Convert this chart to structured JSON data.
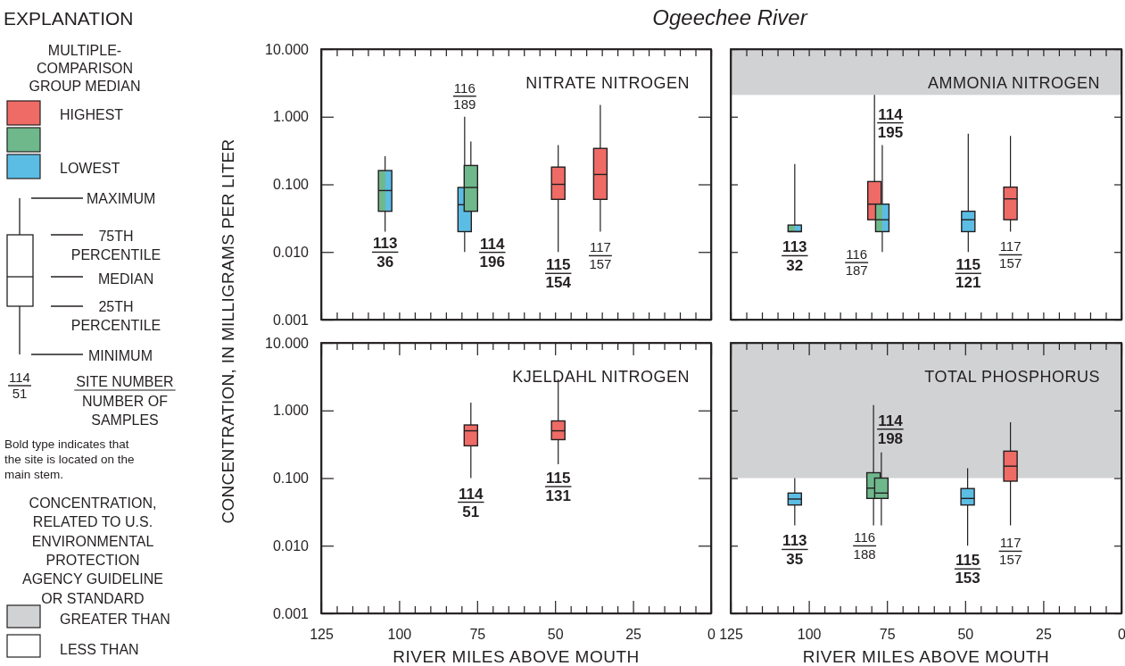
{
  "chart_data": [
    {
      "type": "other",
      "title": "EXPLANATION",
      "colors": [
        "#ef6b66",
        "#6fb88c",
        "#5bbde4",
        "#d1d2d4",
        "#ffffff"
      ],
      "annotations": [
        "MULTIPLE-\nCOMPARISON\nGROUP MEDIAN",
        "HIGHEST",
        "LOWEST",
        "MAXIMUM",
        "75TH\nPERCENTILE",
        "MEDIAN",
        "25TH\nPERCENTILE",
        "MINIMUM",
        "114\n51",
        "SITE NUMBER\nNUMBER OF\nSAMPLES",
        "Bold type indicates that\nthe site is located on the\nmain stem.",
        "CONCENTRATION,\nRELATED TO U.S.\nENVIRONMENTAL\nPROTECTION\nAGENCY GUIDELINE\nOR STANDARD",
        "GREATER THAN",
        "LESS THAN"
      ]
    },
    {
      "type": "box",
      "title": "Ogeechee River",
      "subtitle": "NITRATE NITROGEN",
      "ylabel": "CONCENTRATION, IN MILLIGRAMS PER LITER",
      "log": true,
      "tick_labels": "y",
      "xlim": [
        125,
        0
      ],
      "xticks": [
        {
          "value": 125,
          "label": null
        },
        {
          "value": 120,
          "label": null
        },
        {
          "value": 115,
          "label": null
        },
        {
          "value": 110,
          "label": null
        },
        {
          "value": 105,
          "label": null
        },
        {
          "value": 100,
          "label": null
        },
        {
          "value": 95,
          "label": null
        },
        {
          "value": 90,
          "label": null
        },
        {
          "value": 85,
          "label": null
        },
        {
          "value": 80,
          "label": null
        },
        {
          "value": 75,
          "label": null
        },
        {
          "value": 70,
          "label": null
        },
        {
          "value": 65,
          "label": null
        },
        {
          "value": 60,
          "label": null
        },
        {
          "value": 55,
          "label": null
        },
        {
          "value": 50,
          "label": null
        },
        {
          "value": 45,
          "label": null
        },
        {
          "value": 40,
          "label": null
        },
        {
          "value": 35,
          "label": null
        },
        {
          "value": 30,
          "label": null
        },
        {
          "value": 25,
          "label": null
        },
        {
          "value": 20,
          "label": null
        },
        {
          "value": 15,
          "label": null
        },
        {
          "value": 10,
          "label": null
        },
        {
          "value": 5,
          "label": null
        },
        {
          "value": 0,
          "label": null
        }
      ],
      "ylim": [
        0.001,
        10
      ],
      "yticks": [
        {
          "value": 0.001,
          "label": "0.001"
        },
        {
          "value": 0.01,
          "label": "0.010"
        },
        {
          "value": 0.1,
          "label": "0.100"
        },
        {
          "value": 1,
          "label": "1.000"
        },
        {
          "value": 10,
          "label": "10.000"
        }
      ],
      "series": [
        {
          "x": [
            104.5,
            79,
            77,
            49,
            35.5
          ],
          "colors": [
            [
              "#6fb88c",
              "#5bbde4"
            ],
            "#5bbde4",
            "#6fb88c",
            "#ef6b66",
            "#ef6b66"
          ],
          "boxes": [
            {
              "low": 0.02,
              "q1": 0.04,
              "median": 0.081,
              "q3": 0.16,
              "high": 0.26
            },
            {
              "low": 0.01,
              "q1": 0.02,
              "median": 0.05,
              "q3": 0.09,
              "high": 1.0
            },
            {
              "low": 0.04,
              "q1": 0.04,
              "median": 0.09,
              "q3": 0.19,
              "high": 0.43
            },
            {
              "low": 0.01,
              "q1": 0.06,
              "median": 0.1,
              "q3": 0.18,
              "high": 0.38
            },
            {
              "low": 0.02,
              "q1": 0.06,
              "median": 0.14,
              "q3": 0.34,
              "high": 1.5
            }
          ]
        }
      ],
      "annotations": [
        "113\n36",
        "116\n189",
        "114\n196",
        "115\n154",
        "117\n157"
      ]
    },
    {
      "type": "box",
      "title": "AMMONIA NITROGEN",
      "log": true,
      "tick_labels": false,
      "xlim": [
        125,
        0
      ],
      "xticks": [
        {
          "value": 125,
          "label": null
        },
        {
          "value": 120,
          "label": null
        },
        {
          "value": 115,
          "label": null
        },
        {
          "value": 110,
          "label": null
        },
        {
          "value": 105,
          "label": null
        },
        {
          "value": 100,
          "label": null
        },
        {
          "value": 95,
          "label": null
        },
        {
          "value": 90,
          "label": null
        },
        {
          "value": 85,
          "label": null
        },
        {
          "value": 80,
          "label": null
        },
        {
          "value": 75,
          "label": null
        },
        {
          "value": 70,
          "label": null
        },
        {
          "value": 65,
          "label": null
        },
        {
          "value": 60,
          "label": null
        },
        {
          "value": 55,
          "label": null
        },
        {
          "value": 50,
          "label": null
        },
        {
          "value": 45,
          "label": null
        },
        {
          "value": 40,
          "label": null
        },
        {
          "value": 35,
          "label": null
        },
        {
          "value": 30,
          "label": null
        },
        {
          "value": 25,
          "label": null
        },
        {
          "value": 20,
          "label": null
        },
        {
          "value": 15,
          "label": null
        },
        {
          "value": 10,
          "label": null
        },
        {
          "value": 5,
          "label": null
        },
        {
          "value": 0,
          "label": null
        }
      ],
      "ylim": [
        0.001,
        10
      ],
      "yticks": [
        {
          "value": 0.001,
          "label": null
        },
        {
          "value": 0.01,
          "label": null
        },
        {
          "value": 0.1,
          "label": null
        },
        {
          "value": 1,
          "label": null
        },
        {
          "value": 10,
          "label": null
        }
      ],
      "bands": [
        {
          "axis": "y",
          "from": 2.1,
          "to": 10,
          "color": "#d1d2d4"
        }
      ],
      "series": [
        {
          "x": [
            104.5,
            79,
            76.5,
            49,
            35.5
          ],
          "colors": [
            [
              "#6fb88c",
              "#5bbde4"
            ],
            "#ef6b66",
            [
              "#6fb88c",
              "#5bbde4"
            ],
            "#5bbde4",
            "#ef6b66"
          ],
          "boxes": [
            {
              "low": 0.02,
              "q1": 0.02,
              "median": 0.02,
              "q3": 0.025,
              "high": 0.2
            },
            {
              "low": 0.03,
              "q1": 0.03,
              "median": 0.051,
              "q3": 0.11,
              "high": 2.1
            },
            {
              "low": 0.01,
              "q1": 0.02,
              "median": 0.03,
              "q3": 0.051,
              "high": 0.38
            },
            {
              "low": 0.01,
              "q1": 0.02,
              "median": 0.03,
              "q3": 0.04,
              "high": 0.56
            },
            {
              "low": 0.02,
              "q1": 0.03,
              "median": 0.061,
              "q3": 0.091,
              "high": 0.52
            }
          ]
        }
      ],
      "annotations": [
        "113\n32",
        "116\n187",
        "114\n195",
        "115\n121",
        "117\n157"
      ]
    },
    {
      "type": "box",
      "title": "KJELDAHL NITROGEN",
      "xlabel": "RIVER MILES ABOVE MOUTH",
      "log": true,
      "xlim": [
        125,
        0
      ],
      "xticks": [
        125,
        {
          "value": 120,
          "label": null
        },
        {
          "value": 115,
          "label": null
        },
        {
          "value": 110,
          "label": null
        },
        {
          "value": 105,
          "label": null
        },
        100,
        {
          "value": 95,
          "label": null
        },
        {
          "value": 90,
          "label": null
        },
        {
          "value": 85,
          "label": null
        },
        {
          "value": 80,
          "label": null
        },
        75,
        {
          "value": 70,
          "label": null
        },
        {
          "value": 65,
          "label": null
        },
        {
          "value": 60,
          "label": null
        },
        {
          "value": 55,
          "label": null
        },
        50,
        {
          "value": 45,
          "label": null
        },
        {
          "value": 40,
          "label": null
        },
        {
          "value": 35,
          "label": null
        },
        {
          "value": 30,
          "label": null
        },
        25,
        {
          "value": 20,
          "label": null
        },
        {
          "value": 15,
          "label": null
        },
        {
          "value": 10,
          "label": null
        },
        {
          "value": 5,
          "label": null
        },
        0
      ],
      "ylim": [
        0.001,
        10
      ],
      "yticks": [
        {
          "value": 0.001,
          "label": "0.001"
        },
        {
          "value": 0.01,
          "label": "0.010"
        },
        {
          "value": 0.1,
          "label": "0.100"
        },
        {
          "value": 1,
          "label": "1.000"
        },
        {
          "value": 10,
          "label": "10.000"
        }
      ],
      "series": [
        {
          "x": [
            77,
            49
          ],
          "colors": [
            "#ef6b66",
            "#ef6b66"
          ],
          "boxes": [
            {
              "low": 0.1,
              "q1": 0.3,
              "median": 0.5,
              "q3": 0.61,
              "high": 1.3
            },
            {
              "low": 0.16,
              "q1": 0.37,
              "median": 0.5,
              "q3": 0.7,
              "high": 2.9
            }
          ]
        }
      ],
      "annotations": [
        "114\n51",
        "115\n131"
      ]
    },
    {
      "type": "box",
      "title": "TOTAL PHOSPHORUS",
      "xlabel": "RIVER MILES ABOVE MOUTH",
      "log": true,
      "tick_labels": "x",
      "xlim": [
        125,
        0
      ],
      "xticks": [
        125,
        {
          "value": 120,
          "label": null
        },
        {
          "value": 115,
          "label": null
        },
        {
          "value": 110,
          "label": null
        },
        {
          "value": 105,
          "label": null
        },
        100,
        {
          "value": 95,
          "label": null
        },
        {
          "value": 90,
          "label": null
        },
        {
          "value": 85,
          "label": null
        },
        {
          "value": 80,
          "label": null
        },
        75,
        {
          "value": 70,
          "label": null
        },
        {
          "value": 65,
          "label": null
        },
        {
          "value": 60,
          "label": null
        },
        {
          "value": 55,
          "label": null
        },
        50,
        {
          "value": 45,
          "label": null
        },
        {
          "value": 40,
          "label": null
        },
        {
          "value": 35,
          "label": null
        },
        {
          "value": 30,
          "label": null
        },
        25,
        {
          "value": 20,
          "label": null
        },
        {
          "value": 15,
          "label": null
        },
        {
          "value": 10,
          "label": null
        },
        {
          "value": 5,
          "label": null
        },
        0
      ],
      "ylim": [
        0.001,
        10
      ],
      "yticks": [
        {
          "value": 0.001,
          "label": null
        },
        {
          "value": 0.01,
          "label": null
        },
        {
          "value": 0.1,
          "label": null
        },
        {
          "value": 1,
          "label": null
        },
        {
          "value": 10,
          "label": null
        }
      ],
      "bands": [
        {
          "axis": "y",
          "from": 0.1,
          "to": 10,
          "color": "#d1d2d4"
        }
      ],
      "series": [
        {
          "x": [
            104.5,
            79.3,
            76.8,
            49.2,
            35.5
          ],
          "colors": [
            "#5bbde4",
            "#6fb88c",
            "#6fb88c",
            "#5bbde4",
            "#ef6b66"
          ],
          "boxes": [
            {
              "low": 0.02,
              "q1": 0.04,
              "median": 0.049,
              "q3": 0.06,
              "high": 0.1
            },
            {
              "low": 0.02,
              "q1": 0.05,
              "median": 0.071,
              "q3": 0.12,
              "high": 1.2
            },
            {
              "low": 0.02,
              "q1": 0.05,
              "median": 0.06,
              "q3": 0.1,
              "high": 0.24
            },
            {
              "low": 0.01,
              "q1": 0.04,
              "median": 0.05,
              "q3": 0.07,
              "high": 0.14
            },
            {
              "low": 0.02,
              "q1": 0.09,
              "median": 0.15,
              "q3": 0.25,
              "high": 0.67
            }
          ]
        }
      ],
      "annotations": [
        "113\n35",
        "116\n188",
        "114\n198",
        "115\n153",
        "117\n157"
      ]
    }
  ]
}
